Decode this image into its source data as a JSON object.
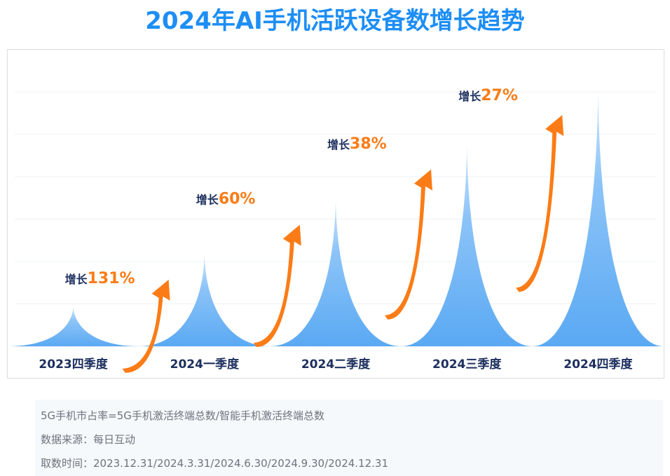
{
  "page_title": "2024年AI手机活跃设备数增长趋势",
  "colors": {
    "title": "#1d8ef5",
    "peak": "#6fb4f5",
    "arrow": "#fb7c17",
    "growth_label": "#1c2f5e",
    "growth_pct": "#fb7c17",
    "axis_label": "#1c2f5e",
    "grid": "#eef0f3"
  },
  "icons": {
    "growth_arrow": "curved-arrow-up-right-icon"
  },
  "chart_data": {
    "type": "area",
    "title": "2024年AI手机活跃设备数增长趋势",
    "categories": [
      "2023四季度",
      "2024一季度",
      "2024二季度",
      "2024三季度",
      "2024四季度"
    ],
    "series": [
      {
        "name": "AI手机活跃设备数",
        "values": [
          1.0,
          2.31,
          3.7,
          5.1,
          6.48
        ]
      }
    ],
    "growth_prefix": "增长",
    "growth": [
      "131%",
      "60%",
      "38%",
      "27%"
    ],
    "ylim": [
      0,
      6.8
    ],
    "grid": true,
    "legend": "none",
    "xlabel": "",
    "ylabel": ""
  },
  "notes": [
    "5G手机市占率=5G手机激活终端总数/智能手机激活终端总数",
    "数据来源：每日互动",
    "取数时间：2023.12.31/2024.3.31/2024.6.30/2024.9.30/2024.12.31"
  ]
}
